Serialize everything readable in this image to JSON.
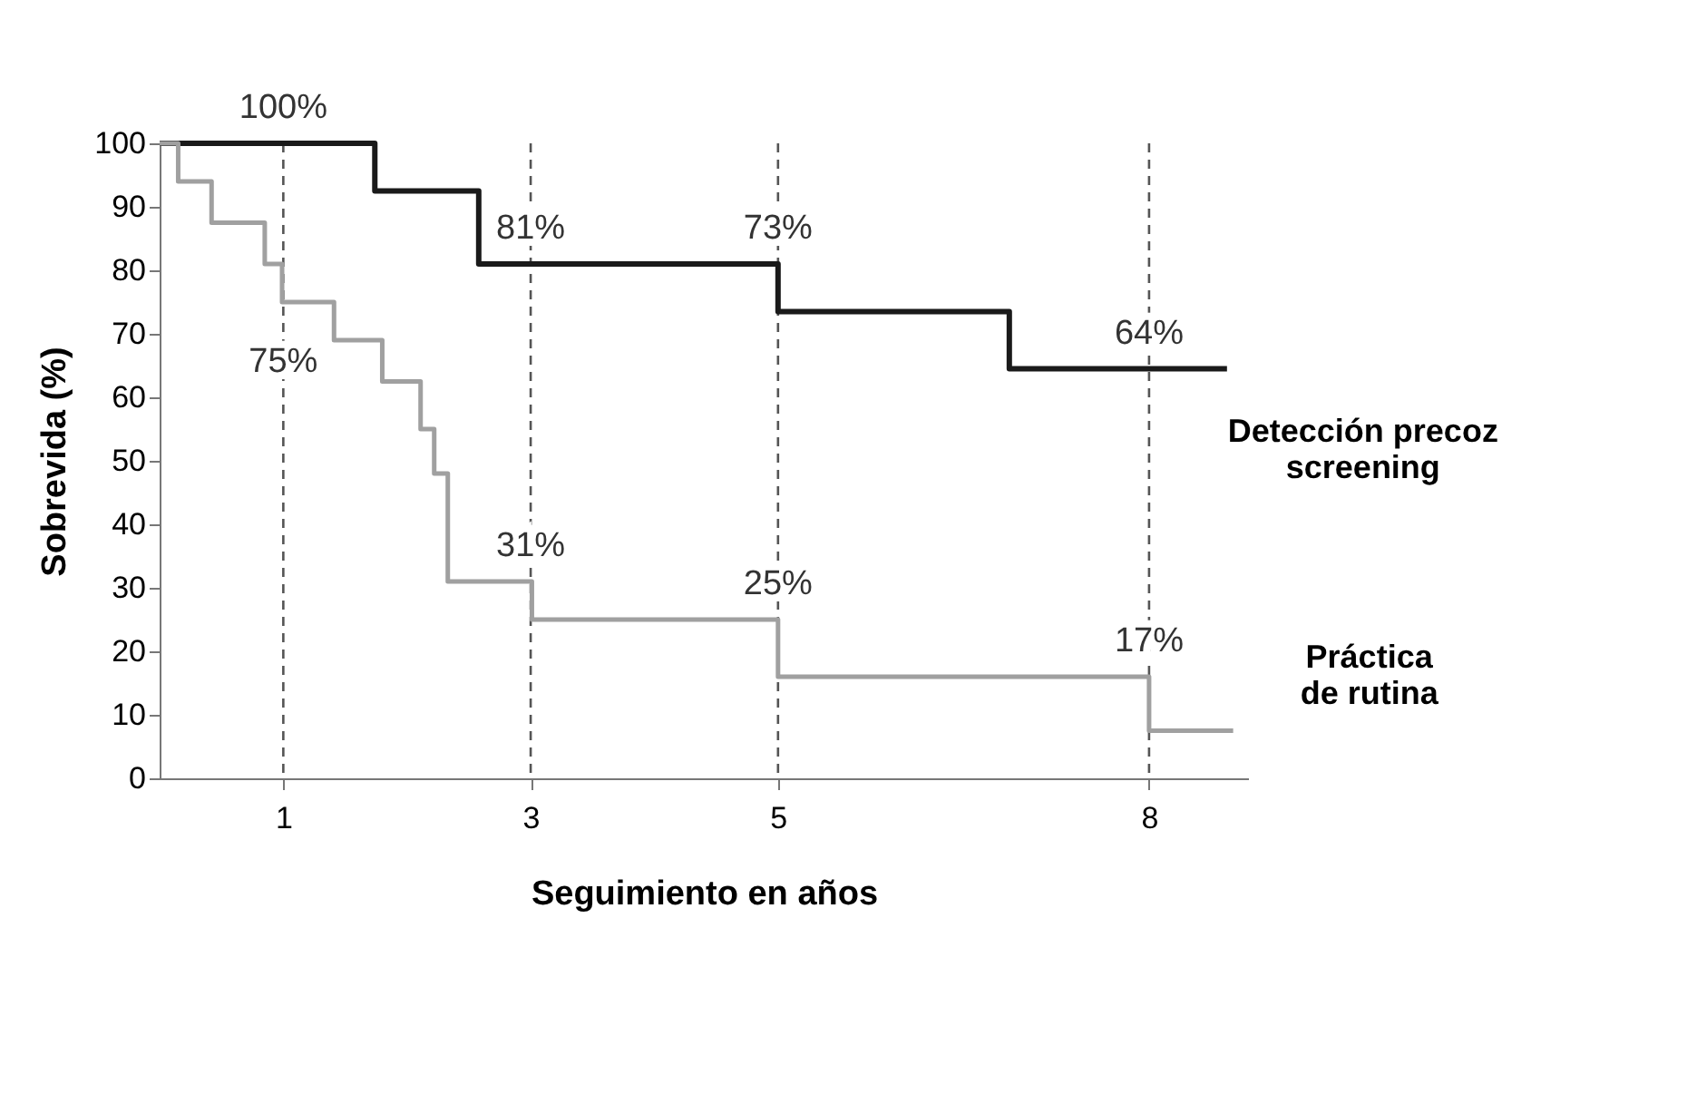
{
  "chart_data": {
    "type": "step",
    "xlabel": "Seguimiento en años",
    "ylabel": "Sobrevida  (%)",
    "xlim": [
      0,
      8.8
    ],
    "xticks": [
      1,
      3,
      5,
      8
    ],
    "ylim": [
      0,
      100
    ],
    "yticks": [
      0,
      10,
      20,
      30,
      40,
      50,
      60,
      70,
      80,
      90,
      100
    ],
    "grid": false,
    "marker": "none",
    "line_style": "solid",
    "series": [
      {
        "name": "Detección precoz\nscreening",
        "color": "#1a1a1a",
        "x": [
          0,
          1.74,
          2.58,
          5,
          6.87,
          8.63
        ],
        "values": [
          100,
          92.5,
          81,
          73.5,
          64.5,
          64.5
        ]
      },
      {
        "name": "Práctica\nde rutina",
        "color": "#a0a0a0",
        "x": [
          0,
          0.15,
          0.42,
          0.85,
          0.99,
          1.41,
          1.8,
          2.11,
          2.22,
          2.33,
          3.01,
          5,
          8,
          8.68
        ],
        "values": [
          100,
          94,
          87.5,
          81,
          75,
          69,
          62.5,
          55,
          48,
          31,
          25,
          16,
          7.5,
          7.5
        ]
      }
    ],
    "ref_lines": [
      {
        "axis": "x",
        "value": 1,
        "line_style": "dashed",
        "color": "#555555"
      },
      {
        "axis": "x",
        "value": 3,
        "line_style": "dashed",
        "color": "#555555"
      },
      {
        "axis": "x",
        "value": 5,
        "line_style": "dashed",
        "color": "#555555"
      },
      {
        "axis": "x",
        "value": 8,
        "line_style": "dashed",
        "color": "#555555"
      }
    ],
    "annotations": [
      {
        "text": "100%",
        "x": 1,
        "y": 100
      },
      {
        "text": "75%",
        "x": 1,
        "y": 60
      },
      {
        "text": "81%",
        "x": 3,
        "y": 81
      },
      {
        "text": "31%",
        "x": 3,
        "y": 31
      },
      {
        "text": "73%",
        "x": 5,
        "y": 81
      },
      {
        "text": "25%",
        "x": 5,
        "y": 25
      },
      {
        "text": "64%",
        "x": 8,
        "y": 64.5
      },
      {
        "text": "17%",
        "x": 8,
        "y": 16
      }
    ]
  }
}
